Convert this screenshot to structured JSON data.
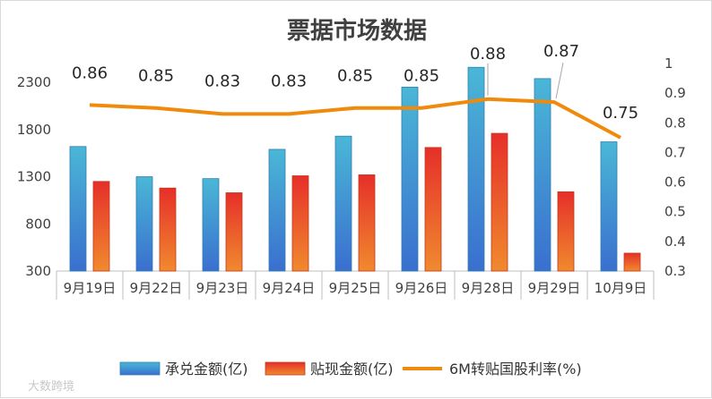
{
  "chart_data": {
    "type": "bar",
    "title": "票据市场数据",
    "categories": [
      "9月19日",
      "9月22日",
      "9月23日",
      "9月24日",
      "9月25日",
      "9月26日",
      "9月28日",
      "9月29日",
      "10月9日"
    ],
    "series": [
      {
        "name": "承兑金额(亿)",
        "type": "bar",
        "axis": "left",
        "color": "#3a9fcf",
        "values": [
          1620,
          1300,
          1280,
          1590,
          1730,
          2250,
          2460,
          2340,
          1670
        ]
      },
      {
        "name": "贴现金额(亿)",
        "type": "bar",
        "axis": "left",
        "color": "#e8532a",
        "values": [
          1250,
          1180,
          1130,
          1310,
          1320,
          1610,
          1760,
          1140,
          490
        ]
      },
      {
        "name": "6M转贴国股利率(%)",
        "type": "line",
        "axis": "right",
        "color": "#f08a0c",
        "values": [
          0.86,
          0.85,
          0.83,
          0.83,
          0.85,
          0.85,
          0.88,
          0.87,
          0.75
        ]
      }
    ],
    "data_labels": [
      "0.86",
      "0.85",
      "0.83",
      "0.83",
      "0.85",
      "0.85",
      "0.88",
      "0.87",
      "0.75"
    ],
    "y_left": {
      "ticks": [
        "300",
        "800",
        "1300",
        "1800",
        "2300"
      ],
      "ylim": [
        300,
        2500
      ]
    },
    "y_right": {
      "ticks": [
        "0.3",
        "0.4",
        "0.5",
        "0.6",
        "0.7",
        "0.8",
        "0.9",
        "1"
      ],
      "ylim": [
        0.3,
        1.0
      ]
    },
    "legend_position": "bottom",
    "grid": false
  },
  "watermark": "大数跨境"
}
